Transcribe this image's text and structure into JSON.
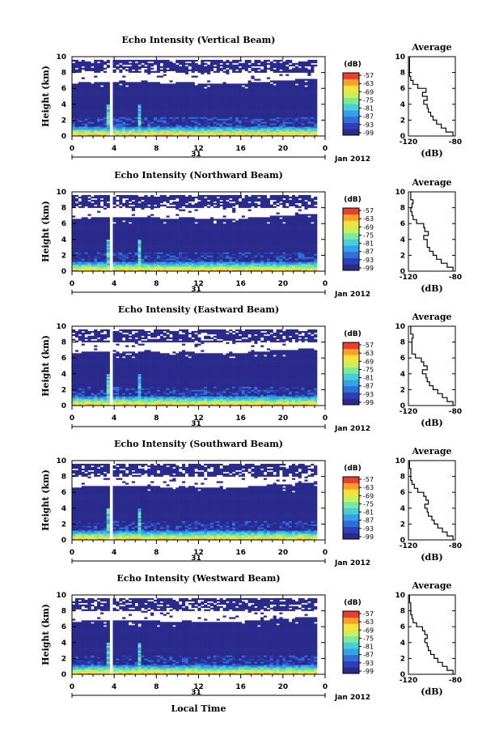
{
  "figure": {
    "date_label": "Jan 2012",
    "day_label": "31",
    "xlabel": "Local Time",
    "colorbar_unit": "(dB)",
    "colorbar_ticks": [
      "-57",
      "-63",
      "-69",
      "-75",
      "-81",
      "-87",
      "-93",
      "-99"
    ],
    "colormap": [
      "#2a2a8c",
      "#2f3fb5",
      "#2f6fd8",
      "#36a0e8",
      "#45d0d8",
      "#7ee89a",
      "#c9f05a",
      "#f6e23a",
      "#f8a02c",
      "#e8402a"
    ]
  },
  "chart_data": [
    {
      "type": "heatmap",
      "title": "Echo Intensity (Vertical Beam)",
      "xlabel": "",
      "ylabel": "Height (km)",
      "xlim": [
        0,
        24
      ],
      "ylim": [
        0,
        10
      ],
      "xticks": [
        "0",
        "4",
        "8",
        "12",
        "16",
        "20",
        "0"
      ],
      "yticks": [
        "0",
        "2",
        "4",
        "6",
        "8",
        "10"
      ],
      "zlim": [
        -99,
        -57
      ],
      "zlabel": "(dB)",
      "avg": {
        "title": "Average",
        "xlabel": "(dB)",
        "xlim": [
          -120,
          -80
        ],
        "xticks": [
          "-120",
          "-80"
        ],
        "height": [
          0,
          0.5,
          1,
          1.5,
          2,
          2.5,
          3,
          3.5,
          4,
          4.5,
          5,
          5.5,
          6,
          6.5,
          7,
          7.5,
          8,
          8.5,
          9,
          9.5
        ],
        "value": [
          -82,
          -88,
          -92,
          -96,
          -99,
          -101,
          -103,
          -104,
          -107,
          -104,
          -108,
          -105,
          -112,
          -116,
          -118,
          -119,
          -119,
          -119,
          -119,
          -119
        ]
      }
    },
    {
      "type": "heatmap",
      "title": "Echo Intensity (Northward Beam)",
      "xlabel": "",
      "ylabel": "Height (km)",
      "xlim": [
        0,
        24
      ],
      "ylim": [
        0,
        10
      ],
      "xticks": [
        "0",
        "4",
        "8",
        "12",
        "16",
        "20",
        "0"
      ],
      "yticks": [
        "0",
        "2",
        "4",
        "6",
        "8",
        "10"
      ],
      "zlim": [
        -99,
        -57
      ],
      "zlabel": "(dB)",
      "avg": {
        "title": "Average",
        "xlabel": "(dB)",
        "xlim": [
          -120,
          -80
        ],
        "xticks": [
          "-120",
          "-80"
        ],
        "height": [
          0,
          0.5,
          1,
          1.5,
          2,
          2.5,
          3,
          3.5,
          4,
          4.5,
          5,
          5.5,
          6,
          6.5,
          7,
          7.5,
          8,
          8.5,
          9,
          9.5
        ],
        "value": [
          -82,
          -87,
          -92,
          -96,
          -99,
          -102,
          -104,
          -104,
          -107,
          -103,
          -106,
          -107,
          -113,
          -116,
          -117,
          -118,
          -117,
          -116,
          -118,
          -118
        ]
      }
    },
    {
      "type": "heatmap",
      "title": "Echo Intensity (Eastward Beam)",
      "xlabel": "",
      "ylabel": "Height (km)",
      "xlim": [
        0,
        24
      ],
      "ylim": [
        0,
        10
      ],
      "xticks": [
        "0",
        "4",
        "8",
        "12",
        "16",
        "20",
        "0"
      ],
      "yticks": [
        "0",
        "2",
        "4",
        "6",
        "8",
        "10"
      ],
      "zlim": [
        -99,
        -57
      ],
      "zlabel": "(dB)",
      "avg": {
        "title": "Average",
        "xlabel": "(dB)",
        "xlim": [
          -120,
          -80
        ],
        "xticks": [
          "-120",
          "-80"
        ],
        "height": [
          0,
          0.5,
          1,
          1.5,
          2,
          2.5,
          3,
          3.5,
          4,
          4.5,
          5,
          5.5,
          6,
          6.5,
          7,
          7.5,
          8,
          8.5,
          9,
          9.5
        ],
        "value": [
          -82,
          -87,
          -91,
          -95,
          -99,
          -102,
          -104,
          -105,
          -108,
          -104,
          -107,
          -109,
          -114,
          -117,
          -117,
          -117,
          -117,
          -116,
          -118,
          -118
        ]
      }
    },
    {
      "type": "heatmap",
      "title": "Echo Intensity (Southward Beam)",
      "xlabel": "",
      "ylabel": "Height (km)",
      "xlim": [
        0,
        24
      ],
      "ylim": [
        0,
        10
      ],
      "xticks": [
        "0",
        "4",
        "8",
        "12",
        "16",
        "20",
        "0"
      ],
      "yticks": [
        "0",
        "2",
        "4",
        "6",
        "8",
        "10"
      ],
      "zlim": [
        -99,
        -57
      ],
      "zlabel": "(dB)",
      "avg": {
        "title": "Average",
        "xlabel": "(dB)",
        "xlim": [
          -120,
          -80
        ],
        "xticks": [
          "-120",
          "-80"
        ],
        "height": [
          0,
          0.5,
          1,
          1.5,
          2,
          2.5,
          3,
          3.5,
          4,
          4.5,
          5,
          5.5,
          6,
          6.5,
          7,
          7.5,
          8,
          8.5,
          9,
          9.5
        ],
        "value": [
          -82,
          -87,
          -91,
          -95,
          -98,
          -100,
          -103,
          -104,
          -106,
          -103,
          -105,
          -107,
          -112,
          -115,
          -117,
          -118,
          -118,
          -118,
          -119,
          -119
        ]
      }
    },
    {
      "type": "heatmap",
      "title": "Echo Intensity (Westward Beam)",
      "xlabel": "Local Time",
      "ylabel": "Height (km)",
      "xlim": [
        0,
        24
      ],
      "ylim": [
        0,
        10
      ],
      "xticks": [
        "0",
        "4",
        "8",
        "12",
        "16",
        "20",
        "0"
      ],
      "yticks": [
        "0",
        "2",
        "4",
        "6",
        "8",
        "10"
      ],
      "zlim": [
        -99,
        -57
      ],
      "zlabel": "(dB)",
      "avg": {
        "title": "Average",
        "xlabel": "(dB)",
        "xlim": [
          -120,
          -80
        ],
        "xticks": [
          "-120",
          "-80"
        ],
        "height": [
          0,
          0.5,
          1,
          1.5,
          2,
          2.5,
          3,
          3.5,
          4,
          4.5,
          5,
          5.5,
          6,
          6.5,
          7,
          7.5,
          8,
          8.5,
          9,
          9.5
        ],
        "value": [
          -82,
          -87,
          -91,
          -95,
          -98,
          -101,
          -103,
          -104,
          -106,
          -104,
          -106,
          -108,
          -113,
          -116,
          -117,
          -118,
          -118,
          -118,
          -119,
          -119
        ]
      }
    }
  ]
}
